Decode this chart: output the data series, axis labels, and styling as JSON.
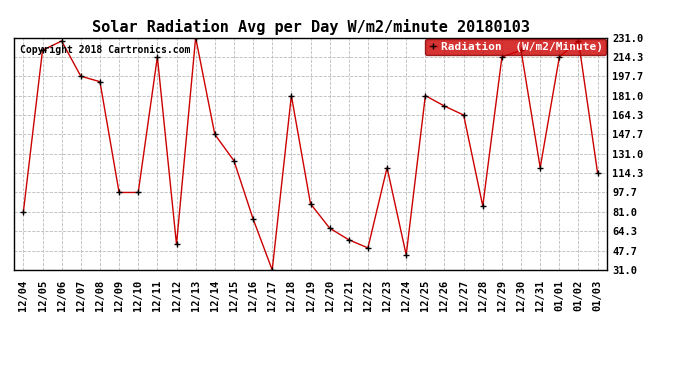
{
  "title": "Solar Radiation Avg per Day W/m2/minute 20180103",
  "copyright": "Copyright 2018 Cartronics.com",
  "legend_label": "Radiation  (W/m2/Minute)",
  "background_color": "#ffffff",
  "plot_bg_color": "#ffffff",
  "line_color": "#cc0000",
  "marker_color": "#000000",
  "legend_bg": "#cc0000",
  "legend_fg": "#ffffff",
  "x_labels": [
    "12/04",
    "12/05",
    "12/06",
    "12/07",
    "12/08",
    "12/09",
    "12/10",
    "12/11",
    "12/12",
    "12/13",
    "12/14",
    "12/15",
    "12/16",
    "12/17",
    "12/18",
    "12/19",
    "12/20",
    "12/21",
    "12/22",
    "12/23",
    "12/24",
    "12/25",
    "12/26",
    "12/27",
    "12/28",
    "12/29",
    "12/30",
    "12/31",
    "01/01",
    "01/02",
    "01/03"
  ],
  "y_values": [
    81.0,
    220.0,
    228.0,
    197.7,
    193.0,
    97.7,
    97.7,
    214.3,
    53.0,
    231.0,
    147.7,
    125.0,
    75.0,
    31.0,
    181.0,
    88.0,
    67.0,
    57.0,
    50.0,
    119.0,
    44.0,
    181.0,
    172.0,
    164.3,
    86.0,
    214.3,
    220.0,
    119.0,
    214.3,
    228.0,
    114.3
  ],
  "ylim_min": 31.0,
  "ylim_max": 231.0,
  "yticks": [
    31.0,
    47.7,
    64.3,
    81.0,
    97.7,
    114.3,
    131.0,
    147.7,
    164.3,
    181.0,
    197.7,
    214.3,
    231.0
  ],
  "grid_color": "#bbbbbb",
  "title_fontsize": 11,
  "copyright_fontsize": 7,
  "legend_fontsize": 8,
  "tick_fontsize": 7.5
}
